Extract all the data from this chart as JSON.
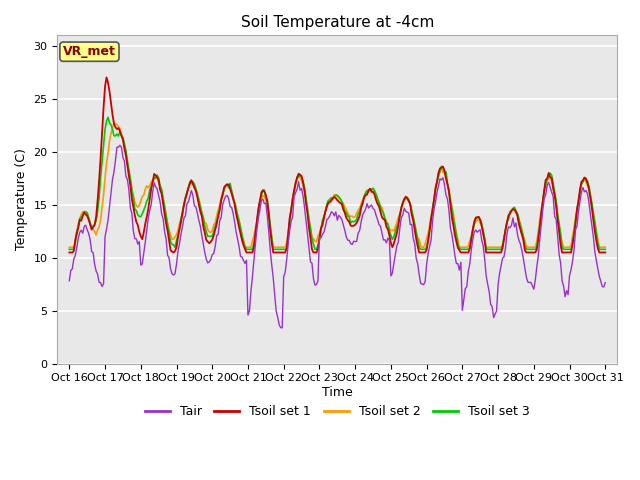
{
  "title": "Soil Temperature at -4cm",
  "xlabel": "Time",
  "ylabel": "Temperature (C)",
  "ylim": [
    0,
    31
  ],
  "annotation_text": "VR_met",
  "bg_color": "#e8e8e8",
  "fig_bg_color": "#ffffff",
  "tick_labels": [
    "Oct 16",
    "Oct 17",
    "Oct 18",
    "Oct 19",
    "Oct 20",
    "Oct 21",
    "Oct 22",
    "Oct 23",
    "Oct 24",
    "Oct 25",
    "Oct 26",
    "Oct 27",
    "Oct 28",
    "Oct 29",
    "Oct 30",
    "Oct 31"
  ],
  "tick_positions": [
    0,
    24,
    48,
    72,
    96,
    120,
    144,
    168,
    192,
    216,
    240,
    264,
    288,
    312,
    336,
    360
  ],
  "line_colors": {
    "Tair": "#9932CC",
    "Tsoil set 1": "#cc0000",
    "Tsoil set 2": "#ff9900",
    "Tsoil set 3": "#00cc00"
  },
  "yticks": [
    0,
    5,
    10,
    15,
    20,
    25,
    30
  ],
  "title_fontsize": 11,
  "axis_fontsize": 9,
  "tick_fontsize": 8,
  "legend_fontsize": 9,
  "n_hours": 361
}
